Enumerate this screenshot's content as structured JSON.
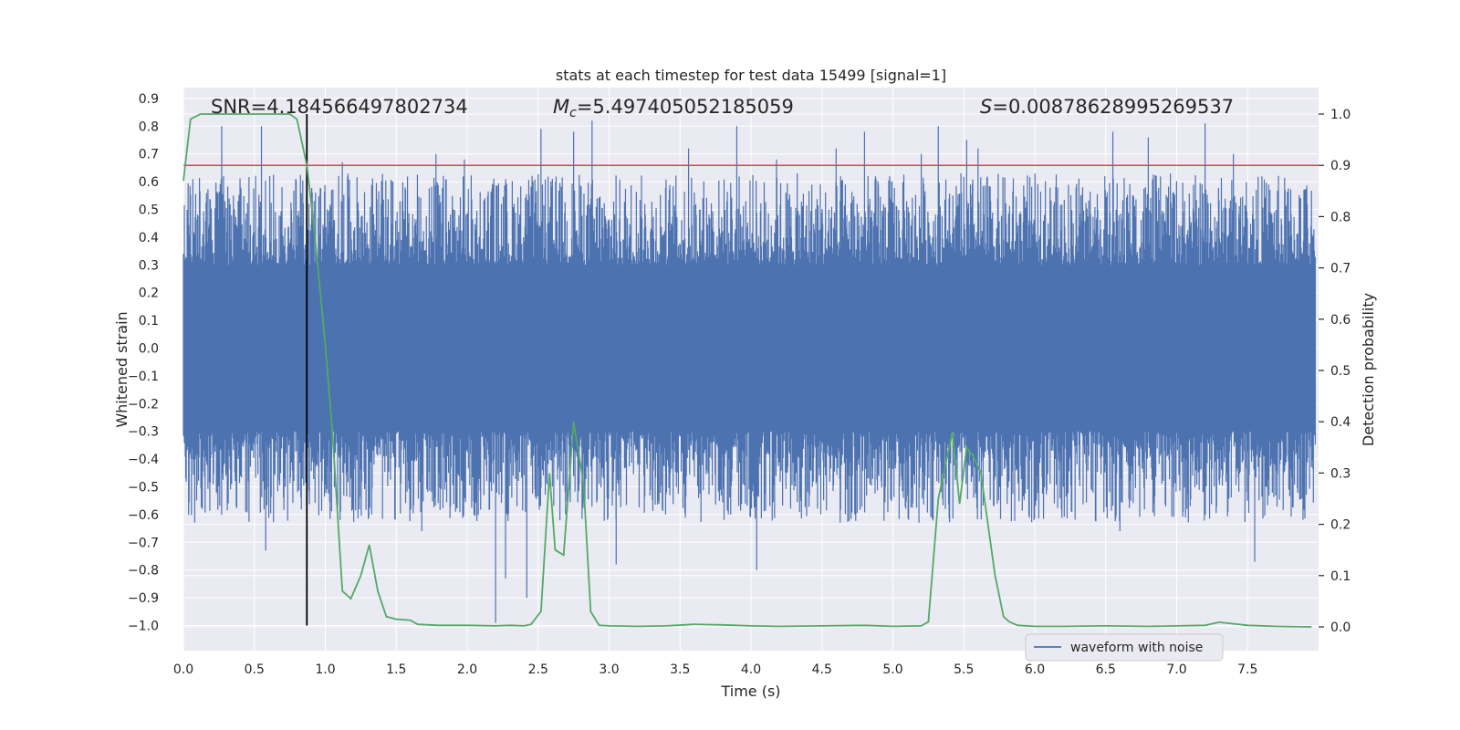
{
  "chart_data": {
    "type": "line",
    "title": "stats at each timestep for test data 15499 [signal=1]",
    "xlabel": "Time (s)",
    "ylabel_left": "Whitened strain",
    "ylabel_right": "Detection probability",
    "xlim": [
      0.0,
      8.0
    ],
    "ylim_left": [
      -1.0,
      0.9
    ],
    "ylim_right": [
      0.0,
      1.0
    ],
    "x_ticks": [
      "0.0",
      "0.5",
      "1.0",
      "1.5",
      "2.0",
      "2.5",
      "3.0",
      "3.5",
      "4.0",
      "4.5",
      "5.0",
      "5.5",
      "6.0",
      "6.5",
      "7.0",
      "7.5"
    ],
    "y_ticks_left": [
      "0.9",
      "0.8",
      "0.7",
      "0.6",
      "0.5",
      "0.4",
      "0.3",
      "0.2",
      "0.1",
      "0.0",
      "−0.1",
      "−0.2",
      "−0.3",
      "−0.4",
      "−0.5",
      "−0.6",
      "−0.7",
      "−0.8",
      "−0.9",
      "−1.0"
    ],
    "y_ticks_right": [
      "1.0",
      "0.9",
      "0.8",
      "0.7",
      "0.6",
      "0.5",
      "0.4",
      "0.3",
      "0.2",
      "0.1",
      "0.0"
    ],
    "annotations": {
      "snr": "SNR=4.184566497802734",
      "mc_symbol": "M",
      "mc_sub": "c",
      "mc_value": "=5.497405052185059",
      "s_symbol": "S",
      "s_value": "=0.00878628995269537"
    },
    "legend": {
      "label": "waveform with noise",
      "placement": "lower-right"
    },
    "threshold": {
      "value_right": 0.9,
      "color": "#c44e52"
    },
    "merger_time": 0.87,
    "series": [
      {
        "name": "waveform with noise",
        "color": "#4c72b0",
        "axis": "left",
        "description": "dense whitened strain noise, core band about -0.3 to 0.3 with spikes",
        "envelope": {
          "core_low": -0.3,
          "core_high": 0.3,
          "peak_high": 0.84,
          "peak_low": -0.99
        },
        "spikes": [
          [
            0.27,
            0.8
          ],
          [
            0.55,
            0.8
          ],
          [
            1.12,
            0.67
          ],
          [
            1.78,
            0.7
          ],
          [
            1.98,
            0.68
          ],
          [
            2.2,
            -0.99
          ],
          [
            2.27,
            -0.83
          ],
          [
            2.42,
            -0.9
          ],
          [
            2.52,
            0.79
          ],
          [
            2.75,
            0.78
          ],
          [
            2.88,
            0.82
          ],
          [
            3.05,
            -0.78
          ],
          [
            3.56,
            0.72
          ],
          [
            3.9,
            0.8
          ],
          [
            4.04,
            -0.8
          ],
          [
            4.18,
            0.68
          ],
          [
            4.6,
            0.72
          ],
          [
            4.8,
            0.78
          ],
          [
            5.2,
            0.7
          ],
          [
            5.32,
            0.8
          ],
          [
            5.52,
            0.75
          ],
          [
            5.6,
            0.72
          ],
          [
            6.55,
            0.78
          ],
          [
            6.8,
            0.76
          ],
          [
            7.2,
            0.81
          ],
          [
            7.4,
            0.7
          ],
          [
            7.55,
            -0.77
          ],
          [
            6.6,
            -0.66
          ],
          [
            1.68,
            -0.66
          ],
          [
            0.58,
            -0.73
          ]
        ]
      },
      {
        "name": "detection probability",
        "color": "#55a868",
        "axis": "right",
        "x": [
          0.0,
          0.05,
          0.12,
          0.2,
          0.3,
          0.4,
          0.5,
          0.6,
          0.7,
          0.75,
          0.8,
          0.87,
          0.92,
          1.0,
          1.05,
          1.12,
          1.18,
          1.25,
          1.31,
          1.37,
          1.43,
          1.5,
          1.6,
          1.65,
          1.8,
          2.0,
          2.2,
          2.3,
          2.4,
          2.45,
          2.52,
          2.58,
          2.62,
          2.68,
          2.75,
          2.82,
          2.87,
          2.93,
          3.0,
          3.2,
          3.4,
          3.6,
          3.8,
          4.0,
          4.2,
          4.5,
          4.8,
          5.0,
          5.2,
          5.25,
          5.32,
          5.42,
          5.47,
          5.52,
          5.57,
          5.62,
          5.72,
          5.78,
          5.82,
          5.88,
          6.0,
          6.2,
          6.5,
          6.8,
          7.0,
          7.2,
          7.3,
          7.5,
          7.7,
          7.95
        ],
        "y": [
          0.87,
          0.99,
          1.0,
          1.0,
          1.0,
          1.0,
          1.0,
          1.0,
          1.0,
          1.0,
          0.99,
          0.9,
          0.78,
          0.55,
          0.38,
          0.07,
          0.055,
          0.1,
          0.16,
          0.07,
          0.02,
          0.015,
          0.013,
          0.005,
          0.003,
          0.003,
          0.002,
          0.003,
          0.002,
          0.005,
          0.03,
          0.3,
          0.15,
          0.14,
          0.4,
          0.28,
          0.03,
          0.003,
          0.002,
          0.001,
          0.002,
          0.005,
          0.004,
          0.002,
          0.001,
          0.002,
          0.003,
          0.001,
          0.002,
          0.01,
          0.25,
          0.38,
          0.24,
          0.35,
          0.33,
          0.3,
          0.1,
          0.02,
          0.01,
          0.003,
          0.001,
          0.001,
          0.002,
          0.001,
          0.002,
          0.003,
          0.009,
          0.003,
          0.001,
          0.0
        ]
      }
    ]
  }
}
